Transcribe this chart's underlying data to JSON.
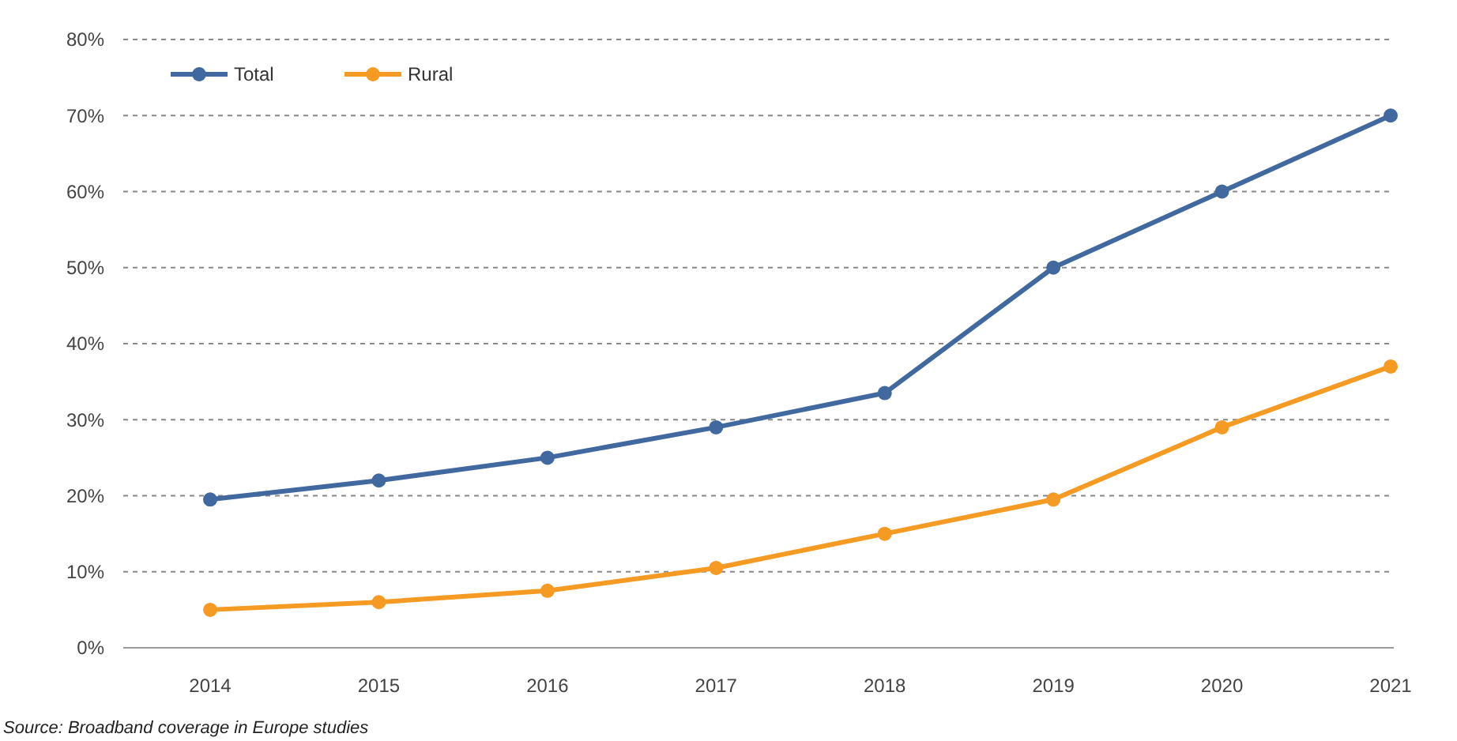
{
  "chart_data": {
    "type": "line",
    "categories": [
      "2014",
      "2015",
      "2016",
      "2017",
      "2018",
      "2019",
      "2020",
      "2021"
    ],
    "series": [
      {
        "name": "Total",
        "color": "#41699f",
        "values": [
          19.5,
          22,
          25,
          29,
          33.5,
          50,
          60,
          70
        ]
      },
      {
        "name": "Rural",
        "color": "#f59a23",
        "values": [
          5,
          6,
          7.5,
          10.5,
          15,
          19.5,
          29,
          37
        ]
      }
    ],
    "ylim": [
      0,
      80
    ],
    "yticks": [
      {
        "value": 0,
        "label": "0%"
      },
      {
        "value": 10,
        "label": "10%"
      },
      {
        "value": 20,
        "label": "20%"
      },
      {
        "value": 30,
        "label": "30%"
      },
      {
        "value": 40,
        "label": "40%"
      },
      {
        "value": 50,
        "label": "50%"
      },
      {
        "value": 60,
        "label": "60%"
      },
      {
        "value": 70,
        "label": "70%"
      },
      {
        "value": 80,
        "label": "80%"
      }
    ],
    "grid": "y",
    "legend": "top left",
    "marker": "circle",
    "line_style": "solid",
    "annotations": [
      "Source: Broadband coverage in Europe studies"
    ]
  }
}
